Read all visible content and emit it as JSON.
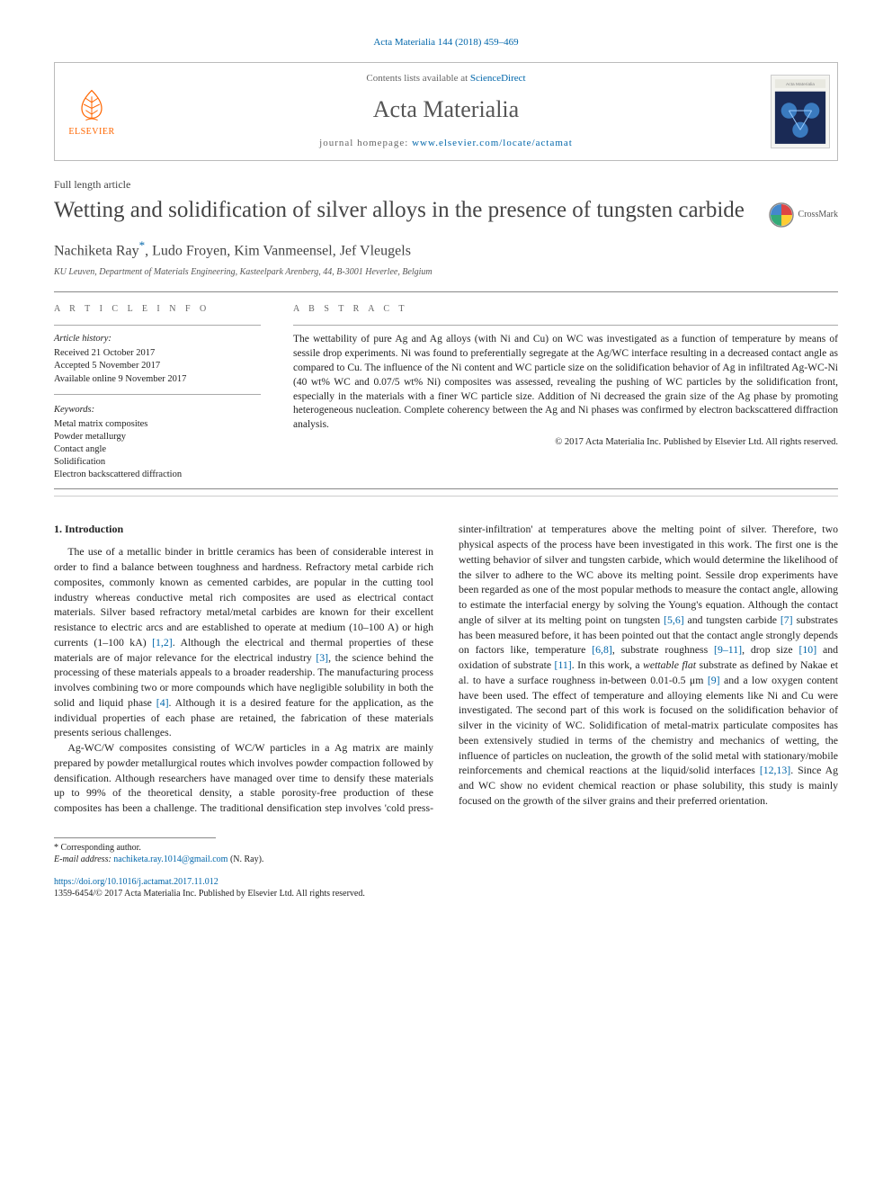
{
  "citation": "Acta Materialia 144 (2018) 459–469",
  "header": {
    "contents_prefix": "Contents lists available at ",
    "contents_link": "ScienceDirect",
    "journal_name": "Acta Materialia",
    "homepage_prefix": "journal homepage: ",
    "homepage_url": "www.elsevier.com/locate/actamat",
    "publisher_label": "ELSEVIER"
  },
  "article_type": "Full length article",
  "title": "Wetting and solidification of silver alloys in the presence of tungsten carbide",
  "crossmark_label": "CrossMark",
  "authors_html": "Nachiketa Ray",
  "author2": ", Ludo Froyen, Kim Vanmeensel, Jef Vleugels",
  "corr_mark": "*",
  "affiliation": "KU Leuven, Department of Materials Engineering, Kasteelpark Arenberg, 44, B-3001 Heverlee, Belgium",
  "info_heading": "A R T I C L E   I N F O",
  "abs_heading": "A B S T R A C T",
  "history": {
    "label": "Article history:",
    "received": "Received 21 October 2017",
    "accepted": "Accepted 5 November 2017",
    "online": "Available online 9 November 2017"
  },
  "keywords": {
    "label": "Keywords:",
    "items": [
      "Metal matrix composites",
      "Powder metallurgy",
      "Contact angle",
      "Solidification",
      "Electron backscattered diffraction"
    ]
  },
  "abstract": "The wettability of pure Ag and Ag alloys (with Ni and Cu) on WC was investigated as a function of temperature by means of sessile drop experiments. Ni was found to preferentially segregate at the Ag/WC interface resulting in a decreased contact angle as compared to Cu. The influence of the Ni content and WC particle size on the solidification behavior of Ag in infiltrated Ag-WC-Ni (40 wt% WC and 0.07/5 wt% Ni) composites was assessed, revealing the pushing of WC particles by the solidification front, especially in the materials with a finer WC particle size. Addition of Ni decreased the grain size of the Ag phase by promoting heterogeneous nucleation. Complete coherency between the Ag and Ni phases was confirmed by electron backscattered diffraction analysis.",
  "copyright": "© 2017 Acta Materialia Inc. Published by Elsevier Ltd. All rights reserved.",
  "section1": {
    "heading": "1. Introduction",
    "p1": "The use of a metallic binder in brittle ceramics has been of considerable interest in order to find a balance between toughness and hardness. Refractory metal carbide rich composites, commonly known as cemented carbides, are popular in the cutting tool industry whereas conductive metal rich composites are used as electrical contact materials. Silver based refractory metal/metal carbides are known for their excellent resistance to electric arcs and are established to operate at medium (10–100 A) or high currents (1–100 kA) [1,2]. Although the electrical and thermal properties of these materials are of major relevance for the electrical industry [3], the science behind the processing of these materials appeals to a broader readership. The manufacturing process involves combining two or more compounds which have negligible solubility in both the solid and liquid phase [4]. Although it is a desired feature for the application, as the individual properties of each phase are retained, the fabrication of these materials presents serious challenges.",
    "p2": "Ag-WC/W composites consisting of WC/W particles in a Ag matrix are mainly prepared by powder metallurgical routes which involves powder compaction followed by densification. Although researchers have managed over time to densify these materials up to 99% of the theoretical density, a stable porosity-free production of these composites has been a challenge. The traditional densification step involves 'cold press-sinter-infiltration' at temperatures above the melting point of silver. Therefore, two physical aspects of the process have been investigated in this work. The first one is the wetting behavior of silver and tungsten carbide, which would determine the likelihood of the silver to adhere to the WC above its melting point. Sessile drop experiments have been regarded as one of the most popular methods to measure the contact angle, allowing to estimate the interfacial energy by solving the Young's equation. Although the contact angle of silver at its melting point on tungsten [5,6] and tungsten carbide [7] substrates has been measured before, it has been pointed out that the contact angle strongly depends on factors like, temperature [6,8], substrate roughness [9–11], drop size [10] and oxidation of substrate [11]. In this work, a wettable flat substrate as defined by Nakae et al. to have a surface roughness in-between 0.01-0.5 μm [9] and a low oxygen content have been used. The effect of temperature and alloying elements like Ni and Cu were investigated. The second part of this work is focused on the solidification behavior of silver in the vicinity of WC. Solidification of metal-matrix particulate composites has been extensively studied in terms of the chemistry and mechanics of wetting, the influence of particles on nucleation, the growth of the solid metal with stationary/mobile reinforcements and chemical reactions at the liquid/solid interfaces [12,13]. Since Ag and WC show no evident chemical reaction or phase solubility, this study is mainly focused on the growth of the silver grains and their preferred orientation."
  },
  "footnote": {
    "corr": "* Corresponding author.",
    "email_lbl": "E-mail address: ",
    "email": "nachiketa.ray.1014@gmail.com",
    "email_who": " (N. Ray)."
  },
  "doi": {
    "url": "https://doi.org/10.1016/j.actamat.2017.11.012",
    "issn_line": "1359-6454/© 2017 Acta Materialia Inc. Published by Elsevier Ltd. All rights reserved."
  },
  "colors": {
    "link": "#0066aa",
    "orange": "#ff6600",
    "text": "#222222",
    "muted": "#666666",
    "rule": "#888888"
  }
}
